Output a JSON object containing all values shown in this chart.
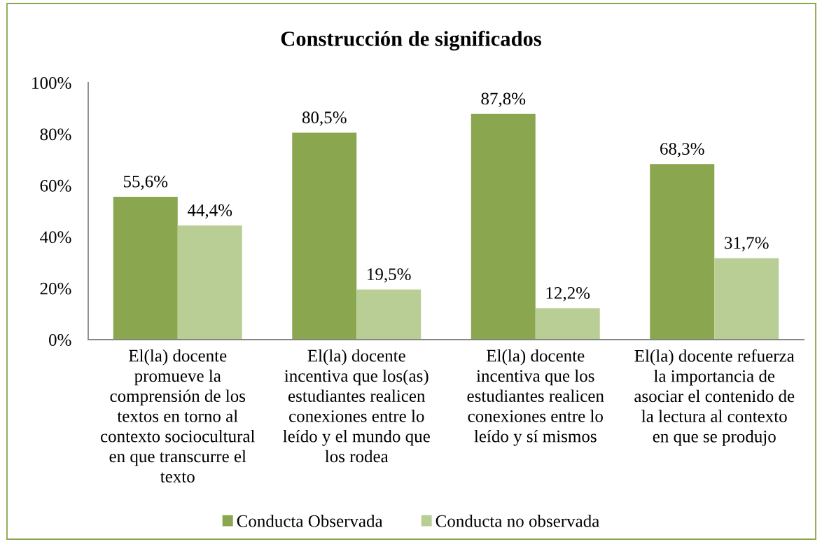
{
  "chart_data": {
    "type": "bar",
    "title": "Construcción de significados",
    "categories": [
      "El(la) docente\npromueve la\ncomprensión de los\ntextos en torno al\ncontexto sociocultural\nen que transcurre el\ntexto",
      "El(la) docente\nincentiva que los(as)\nestudiantes realicen\nconexiones entre lo\nleído y el mundo que\nlos rodea",
      "El(la) docente\nincentiva que los\nestudiantes realicen\nconexiones entre lo\nleído y sí mismos",
      "El(la) docente refuerza\nla importancia de\nasociar el contenido de\nla lectura al contexto\nen que se produjo"
    ],
    "series": [
      {
        "name": "Conducta Observada",
        "color": "#8aa64f",
        "values": [
          55.6,
          80.5,
          87.8,
          68.3
        ],
        "value_labels": [
          "55,6%",
          "80,5%",
          "87,8%",
          "68,3%"
        ]
      },
      {
        "name": "Conducta no observada",
        "color": "#b9ce95",
        "values": [
          44.4,
          19.5,
          12.2,
          31.7
        ],
        "value_labels": [
          "44,4%",
          "19,5%",
          "12,2%",
          "31,7%"
        ]
      }
    ],
    "ylim": [
      0,
      100
    ],
    "yticks": [
      {
        "value": 0,
        "label": "0%"
      },
      {
        "value": 20,
        "label": "20%"
      },
      {
        "value": 40,
        "label": "40%"
      },
      {
        "value": 60,
        "label": "60%"
      },
      {
        "value": 80,
        "label": "80%"
      },
      {
        "value": 100,
        "label": "100%"
      }
    ],
    "grid": false,
    "legend": "bottom"
  }
}
